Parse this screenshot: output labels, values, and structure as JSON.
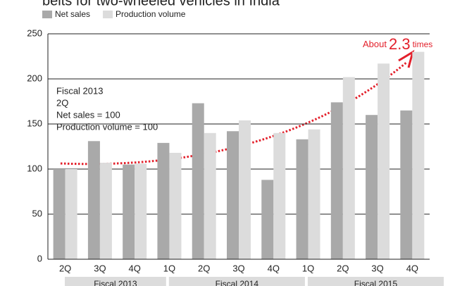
{
  "chart_data": {
    "type": "bar",
    "title": "belts for two-wheeled vehicles in India",
    "groups": [
      {
        "label": "Fiscal 2013",
        "categories": [
          "2Q",
          "3Q",
          "4Q"
        ]
      },
      {
        "label": "Fiscal 2014",
        "categories": [
          "1Q",
          "2Q",
          "3Q",
          "4Q"
        ]
      },
      {
        "label": "Fiscal 2015",
        "categories": [
          "1Q",
          "2Q",
          "3Q",
          "4Q"
        ]
      }
    ],
    "series": [
      {
        "name": "Net sales",
        "color": "#a9a9a9",
        "values": [
          100,
          131,
          105,
          129,
          173,
          142,
          88,
          133,
          174,
          160,
          165
        ]
      },
      {
        "name": "Production volume",
        "color": "#dcdcdc",
        "values": [
          100,
          107,
          106,
          118,
          140,
          154,
          140,
          144,
          202,
          217,
          230
        ]
      }
    ],
    "ylim": [
      0,
      250
    ],
    "yticks": [
      0,
      50,
      100,
      150,
      200,
      250
    ],
    "grid": true,
    "legend": "top-left",
    "annotations": {
      "base": [
        "Fiscal 2013",
        "2Q",
        "Net sales = 100",
        "Production volume = 100"
      ],
      "growth": {
        "prefix": "About",
        "value": "2.3",
        "suffix": "times"
      },
      "color": "#e3202b"
    }
  }
}
